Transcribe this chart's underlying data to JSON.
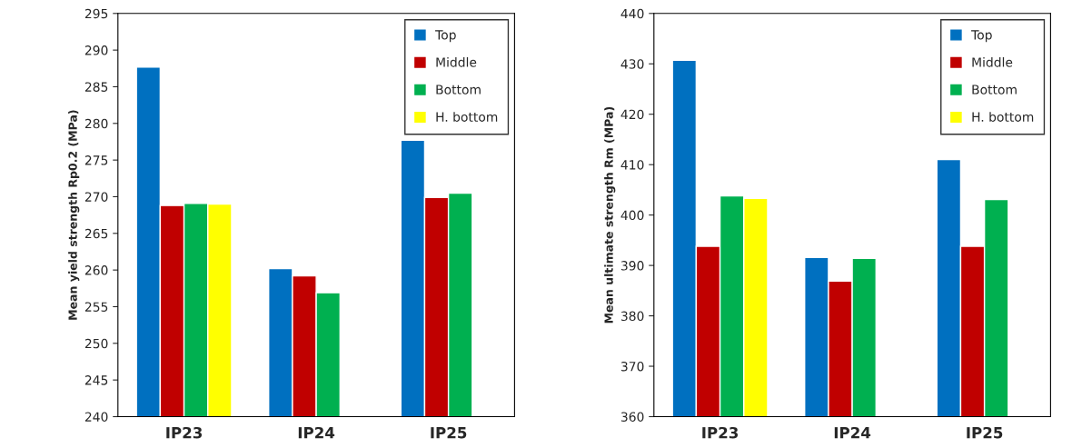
{
  "chart_data": [
    {
      "type": "bar",
      "ylabel": "Mean yield strength Rp0.2 (MPa)",
      "categories": [
        "IP23",
        "IP24",
        "IP25"
      ],
      "ylim": [
        240,
        295
      ],
      "yticks": [
        240,
        245,
        250,
        255,
        260,
        265,
        270,
        275,
        280,
        285,
        290,
        295
      ],
      "legend": "top right",
      "grid": false,
      "series": [
        {
          "name": "Top",
          "color": "#0070c0",
          "values": [
            287.7,
            260.2,
            277.7
          ]
        },
        {
          "name": "Middle",
          "color": "#c00000",
          "values": [
            268.8,
            259.2,
            269.9
          ]
        },
        {
          "name": "Bottom",
          "color": "#00b050",
          "values": [
            269.1,
            256.9,
            270.5
          ]
        },
        {
          "name": "H. bottom",
          "color": "#ffff00",
          "values": [
            269.0,
            null,
            null
          ]
        }
      ]
    },
    {
      "type": "bar",
      "ylabel": "Mean ultimate strength Rm (MPa)",
      "categories": [
        "IP23",
        "IP24",
        "IP25"
      ],
      "ylim": [
        360,
        440
      ],
      "yticks": [
        360,
        370,
        380,
        390,
        400,
        410,
        420,
        430,
        440
      ],
      "legend": "top right",
      "grid": false,
      "series": [
        {
          "name": "Top",
          "color": "#0070c0",
          "values": [
            430.7,
            391.6,
            411.0
          ]
        },
        {
          "name": "Middle",
          "color": "#c00000",
          "values": [
            393.8,
            386.9,
            393.8
          ]
        },
        {
          "name": "Bottom",
          "color": "#00b050",
          "values": [
            403.8,
            391.4,
            403.1
          ]
        },
        {
          "name": "H. bottom",
          "color": "#ffff00",
          "values": [
            403.3,
            null,
            null
          ]
        }
      ]
    }
  ]
}
